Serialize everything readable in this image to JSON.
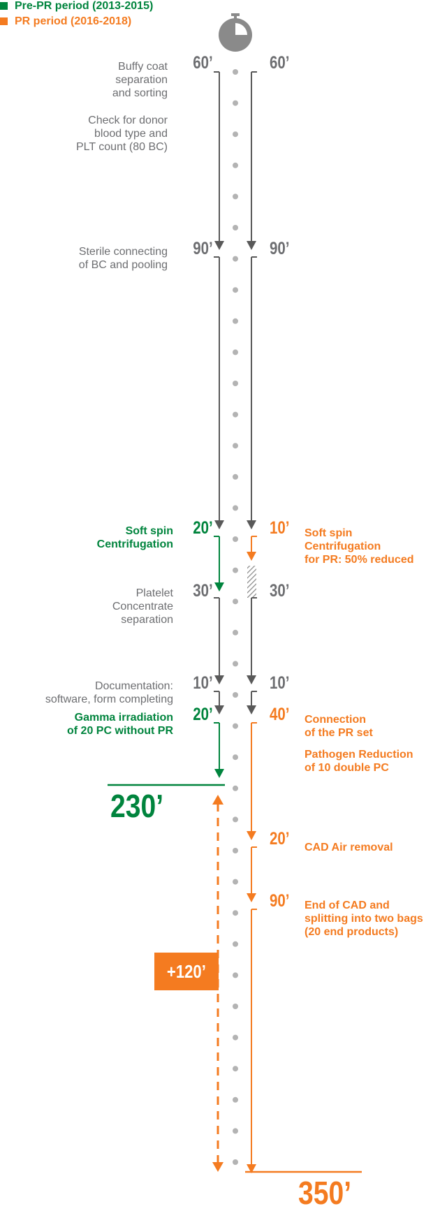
{
  "colors": {
    "gray": "#6d6e71",
    "green": "#00843d",
    "orange": "#f47b20",
    "dot": "#b3b3b3"
  },
  "legend": [
    {
      "label": "Pre-PR period (2013-2015)",
      "color": "#00843d"
    },
    {
      "label": "PR period (2016-2018)",
      "color": "#f47b20"
    }
  ],
  "icon": "stopwatch-icon",
  "left_steps": [
    {
      "duration": "60’",
      "duration_color": "gray",
      "lines": [
        "Buffy coat",
        "separation",
        "and sorting"
      ],
      "text_color": "gray"
    },
    {
      "duration": "",
      "duration_color": "gray",
      "lines": [
        "Check for donor",
        "blood type and",
        "PLT count (80 BC)"
      ],
      "text_color": "gray"
    },
    {
      "duration": "90’",
      "duration_color": "gray",
      "lines": [
        "Sterile connecting",
        "of BC and pooling"
      ],
      "text_color": "gray"
    },
    {
      "duration": "20’",
      "duration_color": "green",
      "lines": [
        "Soft spin",
        "Centrifugation"
      ],
      "text_color": "green"
    },
    {
      "duration": "30’",
      "duration_color": "gray",
      "lines": [
        "Platelet",
        "Concentrate",
        "separation"
      ],
      "text_color": "gray"
    },
    {
      "duration": "10’",
      "duration_color": "gray",
      "lines": [
        "Documentation:",
        "software, form completing"
      ],
      "text_color": "gray"
    },
    {
      "duration": "20’",
      "duration_color": "green",
      "lines": [
        "Gamma irradiation",
        "of 20 PC without PR"
      ],
      "text_color": "green"
    }
  ],
  "right_steps": [
    {
      "duration": "60’",
      "duration_color": "gray",
      "lines": []
    },
    {
      "duration": "90’",
      "duration_color": "gray",
      "lines": []
    },
    {
      "duration": "10’",
      "duration_color": "orange",
      "lines": [
        "Soft spin",
        "Centrifugation",
        "for PR: 50% reduced"
      ]
    },
    {
      "duration": "30’",
      "duration_color": "gray",
      "lines": []
    },
    {
      "duration": "10’",
      "duration_color": "gray",
      "lines": []
    },
    {
      "duration": "40’",
      "duration_color": "orange",
      "lines": [
        "Connection",
        "of the PR set"
      ]
    },
    {
      "duration": "",
      "duration_color": "orange",
      "lines": [
        "Pathogen Reduction",
        "of 10 double PC"
      ]
    },
    {
      "duration": "20’",
      "duration_color": "orange",
      "lines": [
        "CAD Air removal"
      ]
    },
    {
      "duration": "90’",
      "duration_color": "orange",
      "lines": [
        "End of CAD and",
        "splitting into two bags",
        "(20 end products)"
      ]
    }
  ],
  "totals": {
    "pre_pr": "230’",
    "pr": "350’",
    "difference": "+120’"
  }
}
